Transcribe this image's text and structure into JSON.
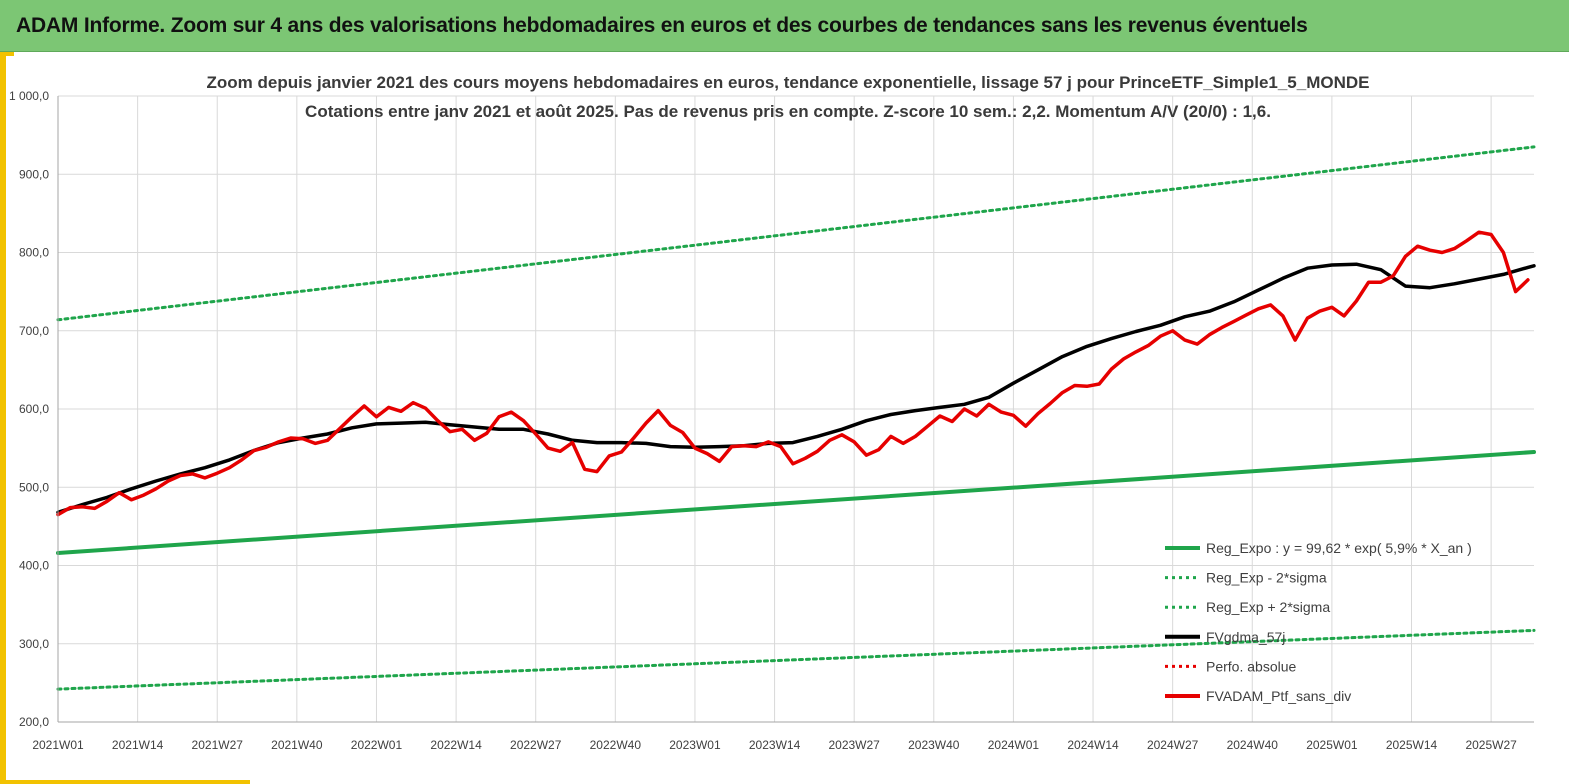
{
  "banner": {
    "title": "ADAM Informe. Zoom sur 4 ans des valorisations hebdomadaires en euros et des courbes de tendances sans les revenus éventuels"
  },
  "chart_data": {
    "type": "line",
    "title": "Zoom depuis janvier 2021 des cours moyens hebdomadaires  en euros, tendance exponentielle, lissage 57 j pour PrinceETF_Simple1_5_MONDE",
    "subtitle": "Cotations entre janv 2021 et août 2025. Pas de revenus pris en compte. Z-score 10 sem.: 2,2. Momentum A/V (20/0) : 1,6.",
    "xlabel": "",
    "ylabel": "",
    "ylim": [
      200,
      1000
    ],
    "grid": true,
    "legend_position": "bottom-right",
    "y_ticks": [
      {
        "value": 200,
        "label": "200,0"
      },
      {
        "value": 300,
        "label": "300,0"
      },
      {
        "value": 400,
        "label": "400,0"
      },
      {
        "value": 500,
        "label": "500,0"
      },
      {
        "value": 600,
        "label": "600,0"
      },
      {
        "value": 700,
        "label": "700,0"
      },
      {
        "value": 800,
        "label": "800,0"
      },
      {
        "value": 900,
        "label": "900,0"
      },
      {
        "value": 1000,
        "label": "1 000,0"
      }
    ],
    "x_range": [
      0,
      241
    ],
    "x_ticks": [
      {
        "week": 0,
        "label": "2021W01"
      },
      {
        "week": 13,
        "label": "2021W14"
      },
      {
        "week": 26,
        "label": "2021W27"
      },
      {
        "week": 39,
        "label": "2021W40"
      },
      {
        "week": 52,
        "label": "2022W01"
      },
      {
        "week": 65,
        "label": "2022W14"
      },
      {
        "week": 78,
        "label": "2022W27"
      },
      {
        "week": 91,
        "label": "2022W40"
      },
      {
        "week": 104,
        "label": "2023W01"
      },
      {
        "week": 117,
        "label": "2023W14"
      },
      {
        "week": 130,
        "label": "2023W27"
      },
      {
        "week": 143,
        "label": "2023W40"
      },
      {
        "week": 156,
        "label": "2024W01"
      },
      {
        "week": 169,
        "label": "2024W14"
      },
      {
        "week": 182,
        "label": "2024W27"
      },
      {
        "week": 195,
        "label": "2024W40"
      },
      {
        "week": 208,
        "label": "2025W01"
      },
      {
        "week": 221,
        "label": "2025W14"
      },
      {
        "week": 234,
        "label": "2025W27"
      }
    ],
    "series": [
      {
        "name": "Reg_Expo : y = 99,62 * exp( 5,9% *  X_an )",
        "color": "#1fa54b",
        "style": "solid",
        "width": 4,
        "points": [
          [
            0,
            416
          ],
          [
            241,
            545
          ]
        ]
      },
      {
        "name": "Reg_Exp - 2*sigma",
        "color": "#1fa54b",
        "style": "dotted",
        "width": 3,
        "points": [
          [
            0,
            242
          ],
          [
            241,
            317
          ]
        ]
      },
      {
        "name": "Reg_Exp + 2*sigma",
        "color": "#1fa54b",
        "style": "dotted",
        "width": 3,
        "points": [
          [
            0,
            714
          ],
          [
            241,
            935
          ]
        ]
      },
      {
        "name": "FVgdma_57j",
        "color": "#000000",
        "style": "solid",
        "width": 3.5,
        "points": [
          [
            0,
            468
          ],
          [
            4,
            478
          ],
          [
            8,
            487
          ],
          [
            12,
            498
          ],
          [
            16,
            508
          ],
          [
            20,
            517
          ],
          [
            24,
            525
          ],
          [
            28,
            535
          ],
          [
            32,
            547
          ],
          [
            36,
            557
          ],
          [
            40,
            563
          ],
          [
            44,
            568
          ],
          [
            48,
            576
          ],
          [
            52,
            581
          ],
          [
            56,
            582
          ],
          [
            60,
            583
          ],
          [
            64,
            580
          ],
          [
            68,
            577
          ],
          [
            72,
            574
          ],
          [
            76,
            574
          ],
          [
            80,
            568
          ],
          [
            84,
            560
          ],
          [
            88,
            557
          ],
          [
            92,
            557
          ],
          [
            96,
            556
          ],
          [
            100,
            552
          ],
          [
            104,
            551
          ],
          [
            108,
            552
          ],
          [
            112,
            553
          ],
          [
            116,
            556
          ],
          [
            120,
            557
          ],
          [
            124,
            565
          ],
          [
            128,
            574
          ],
          [
            132,
            585
          ],
          [
            136,
            593
          ],
          [
            140,
            598
          ],
          [
            144,
            602
          ],
          [
            148,
            606
          ],
          [
            152,
            615
          ],
          [
            156,
            633
          ],
          [
            160,
            650
          ],
          [
            164,
            667
          ],
          [
            168,
            680
          ],
          [
            172,
            690
          ],
          [
            176,
            699
          ],
          [
            180,
            707
          ],
          [
            184,
            718
          ],
          [
            188,
            725
          ],
          [
            192,
            737
          ],
          [
            196,
            752
          ],
          [
            200,
            767
          ],
          [
            204,
            780
          ],
          [
            208,
            784
          ],
          [
            212,
            785
          ],
          [
            216,
            778
          ],
          [
            220,
            757
          ],
          [
            224,
            755
          ],
          [
            228,
            760
          ],
          [
            232,
            766
          ],
          [
            236,
            772
          ],
          [
            240,
            781
          ],
          [
            241,
            783
          ]
        ]
      },
      {
        "name": "Perfo. absolue",
        "color": "#e60000",
        "style": "dotted",
        "width": 3,
        "points": []
      },
      {
        "name": "FVADAM_Ptf_sans_div",
        "color": "#e60000",
        "style": "solid",
        "width": 3.5,
        "points": [
          [
            0,
            465
          ],
          [
            2,
            474
          ],
          [
            4,
            475
          ],
          [
            6,
            473
          ],
          [
            8,
            482
          ],
          [
            10,
            493
          ],
          [
            12,
            484
          ],
          [
            14,
            490
          ],
          [
            16,
            498
          ],
          [
            18,
            508
          ],
          [
            20,
            515
          ],
          [
            22,
            517
          ],
          [
            24,
            512
          ],
          [
            26,
            518
          ],
          [
            28,
            525
          ],
          [
            30,
            535
          ],
          [
            32,
            547
          ],
          [
            34,
            551
          ],
          [
            36,
            558
          ],
          [
            38,
            563
          ],
          [
            40,
            562
          ],
          [
            42,
            556
          ],
          [
            44,
            560
          ],
          [
            46,
            575
          ],
          [
            48,
            590
          ],
          [
            50,
            604
          ],
          [
            52,
            590
          ],
          [
            54,
            602
          ],
          [
            56,
            597
          ],
          [
            58,
            608
          ],
          [
            60,
            601
          ],
          [
            62,
            585
          ],
          [
            64,
            571
          ],
          [
            66,
            574
          ],
          [
            68,
            560
          ],
          [
            70,
            569
          ],
          [
            72,
            590
          ],
          [
            74,
            596
          ],
          [
            76,
            585
          ],
          [
            78,
            568
          ],
          [
            80,
            550
          ],
          [
            82,
            546
          ],
          [
            84,
            557
          ],
          [
            86,
            523
          ],
          [
            88,
            520
          ],
          [
            90,
            540
          ],
          [
            92,
            545
          ],
          [
            94,
            563
          ],
          [
            96,
            582
          ],
          [
            98,
            598
          ],
          [
            100,
            579
          ],
          [
            102,
            570
          ],
          [
            104,
            550
          ],
          [
            106,
            543
          ],
          [
            108,
            533
          ],
          [
            110,
            552
          ],
          [
            112,
            553
          ],
          [
            114,
            552
          ],
          [
            116,
            558
          ],
          [
            118,
            552
          ],
          [
            120,
            530
          ],
          [
            122,
            537
          ],
          [
            124,
            546
          ],
          [
            126,
            560
          ],
          [
            128,
            567
          ],
          [
            130,
            558
          ],
          [
            132,
            541
          ],
          [
            134,
            548
          ],
          [
            136,
            565
          ],
          [
            138,
            556
          ],
          [
            140,
            565
          ],
          [
            142,
            578
          ],
          [
            144,
            591
          ],
          [
            146,
            584
          ],
          [
            148,
            600
          ],
          [
            150,
            591
          ],
          [
            152,
            606
          ],
          [
            154,
            596
          ],
          [
            156,
            592
          ],
          [
            158,
            578
          ],
          [
            160,
            594
          ],
          [
            162,
            607
          ],
          [
            164,
            621
          ],
          [
            166,
            630
          ],
          [
            168,
            629
          ],
          [
            170,
            632
          ],
          [
            172,
            651
          ],
          [
            174,
            664
          ],
          [
            176,
            673
          ],
          [
            178,
            681
          ],
          [
            180,
            693
          ],
          [
            182,
            700
          ],
          [
            184,
            688
          ],
          [
            186,
            683
          ],
          [
            188,
            695
          ],
          [
            190,
            704
          ],
          [
            192,
            712
          ],
          [
            194,
            720
          ],
          [
            196,
            728
          ],
          [
            198,
            733
          ],
          [
            200,
            719
          ],
          [
            202,
            688
          ],
          [
            204,
            716
          ],
          [
            206,
            725
          ],
          [
            208,
            730
          ],
          [
            210,
            719
          ],
          [
            212,
            738
          ],
          [
            214,
            762
          ],
          [
            216,
            762
          ],
          [
            218,
            770
          ],
          [
            220,
            795
          ],
          [
            222,
            808
          ],
          [
            224,
            803
          ],
          [
            226,
            800
          ],
          [
            228,
            805
          ],
          [
            230,
            815
          ],
          [
            232,
            826
          ],
          [
            234,
            823
          ],
          [
            236,
            800
          ],
          [
            238,
            750
          ],
          [
            240,
            765
          ]
        ]
      }
    ]
  }
}
